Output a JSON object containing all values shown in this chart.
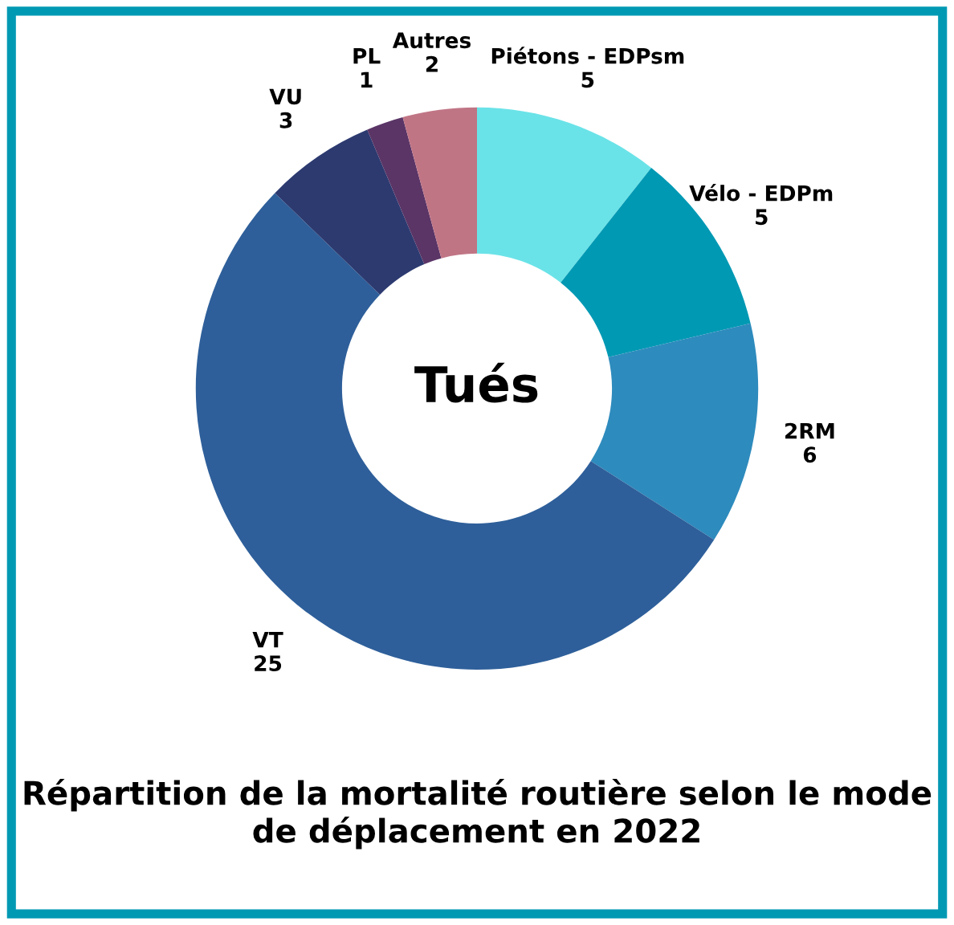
{
  "chart_data": {
    "type": "donut",
    "title": "Répartition de la mortalité routière selon le mode de déplacement en 2022",
    "categories": [
      "Piétons - EDPsm",
      "Vélo - EDPm",
      "2RM",
      "VT",
      "VU",
      "PL",
      "Autres"
    ],
    "values": [
      5,
      5,
      6,
      25,
      3,
      1,
      2
    ],
    "colors": [
      "#6ae3e8",
      "#0099b4",
      "#2e8bbd",
      "#2e5f9a",
      "#2c3a70",
      "#5a3566",
      "#c07585"
    ],
    "annotations": [
      "Tués"
    ],
    "data_labels": true
  }
}
